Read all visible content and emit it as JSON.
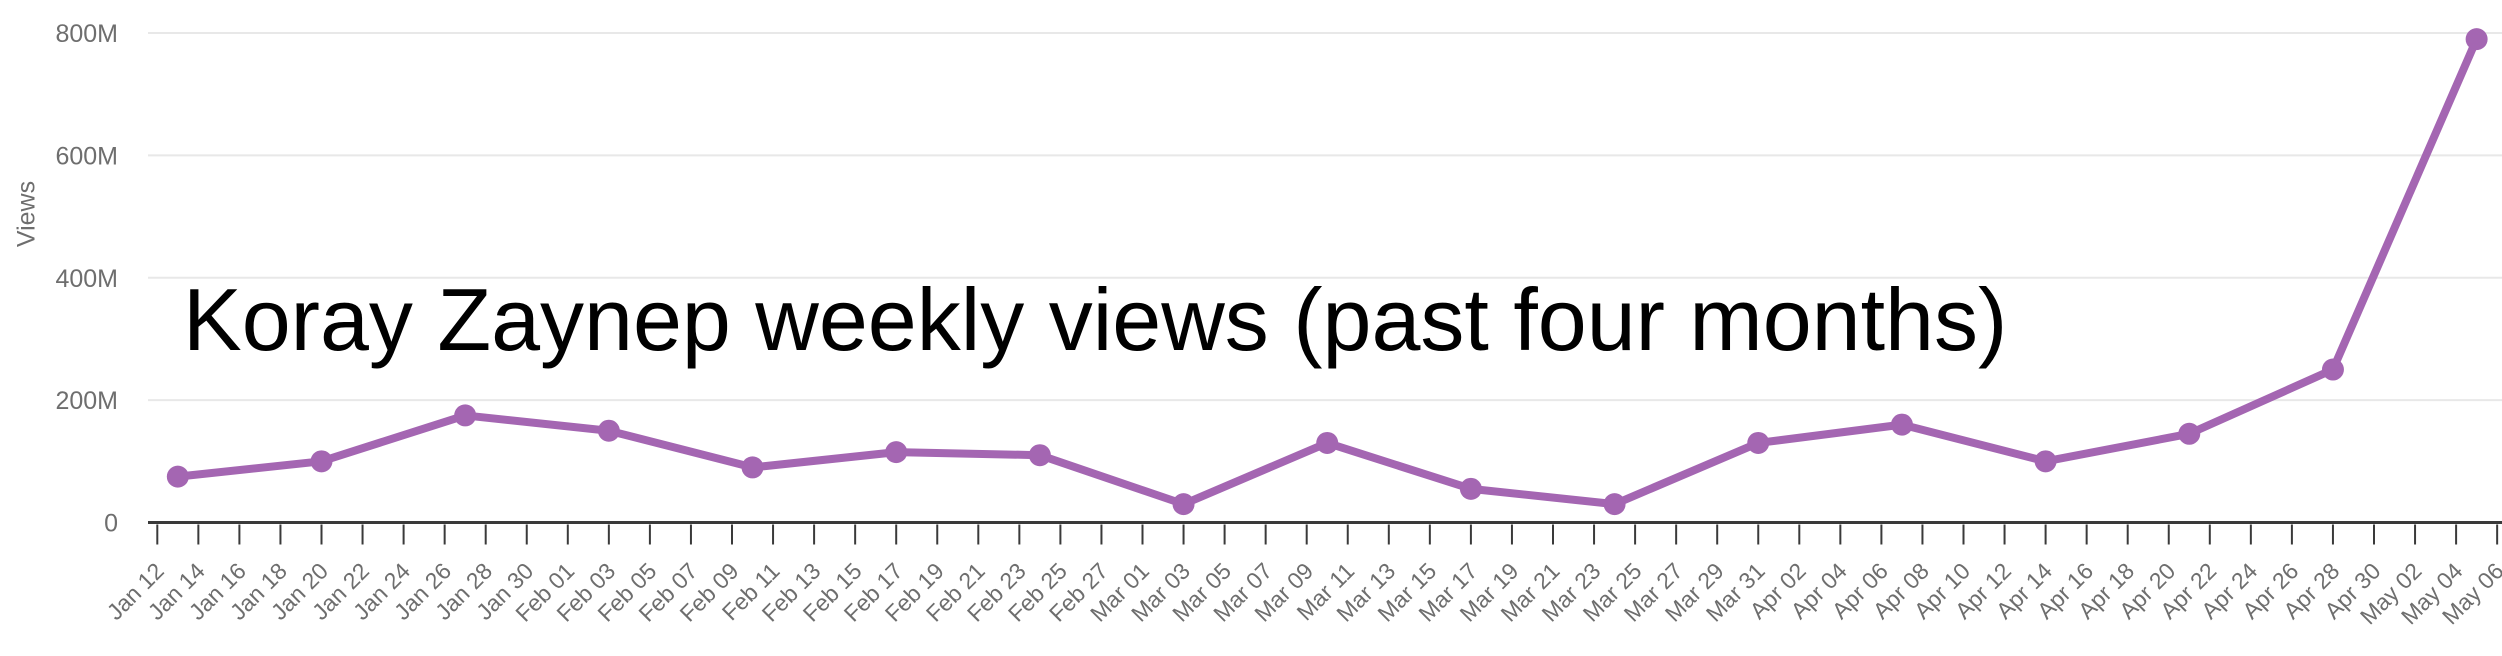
{
  "chart": {
    "title": "Koray Zaynep weekly views (past four months)",
    "y_axis_label": "Views",
    "colors": {
      "series_line": "#a466b2",
      "marker": "#a466b2",
      "gridline": "#e8e8e8",
      "axis_line": "#3a3a3a",
      "tick_mark": "#3a3a3a",
      "tick_text": "#6e6e6e",
      "title_text": "#000000",
      "background": "#ffffff"
    }
  },
  "chart_data": {
    "type": "line",
    "title": "Koray Zaynep weekly views (past four months)",
    "xlabel": "",
    "ylabel": "Views",
    "y_unit": "M (millions of views)",
    "ylim": [
      0,
      800
    ],
    "y_axis_tick_labels": [
      "0",
      "200M",
      "400M",
      "600M",
      "800M"
    ],
    "grid": "horizontal-only",
    "legend": "none",
    "marker_style": "filled-circle",
    "x": [
      "Jan 13",
      "Jan 20",
      "Jan 27",
      "Feb 03",
      "Feb 10",
      "Feb 17",
      "Feb 24",
      "Mar 03",
      "Mar 10",
      "Mar 17",
      "Mar 24",
      "Mar 31",
      "Apr 07",
      "Apr 14",
      "Apr 21",
      "Apr 28",
      "May 05"
    ],
    "values": [
      75,
      100,
      175,
      150,
      90,
      115,
      110,
      30,
      130,
      55,
      30,
      130,
      160,
      100,
      145,
      250,
      790
    ],
    "x_axis_tick_labels": [
      "Jan 12",
      "Jan 14",
      "Jan 16",
      "Jan 18",
      "Jan 20",
      "Jan 22",
      "Jan 24",
      "Jan 26",
      "Jan 28",
      "Jan 30",
      "Feb 01",
      "Feb 03",
      "Feb 05",
      "Feb 07",
      "Feb 09",
      "Feb 11",
      "Feb 13",
      "Feb 15",
      "Feb 17",
      "Feb 19",
      "Feb 21",
      "Feb 23",
      "Feb 25",
      "Feb 27",
      "Mar 01",
      "Mar 03",
      "Mar 05",
      "Mar 07",
      "Mar 09",
      "Mar 11",
      "Mar 13",
      "Mar 15",
      "Mar 17",
      "Mar 19",
      "Mar 21",
      "Mar 23",
      "Mar 25",
      "Mar 27",
      "Mar 29",
      "Mar 31",
      "Apr 02",
      "Apr 04",
      "Apr 06",
      "Apr 08",
      "Apr 10",
      "Apr 12",
      "Apr 14",
      "Apr 16",
      "Apr 18",
      "Apr 20",
      "Apr 22",
      "Apr 24",
      "Apr 26",
      "Apr 28",
      "Apr 30",
      "May 02",
      "May 04",
      "May 06"
    ]
  }
}
